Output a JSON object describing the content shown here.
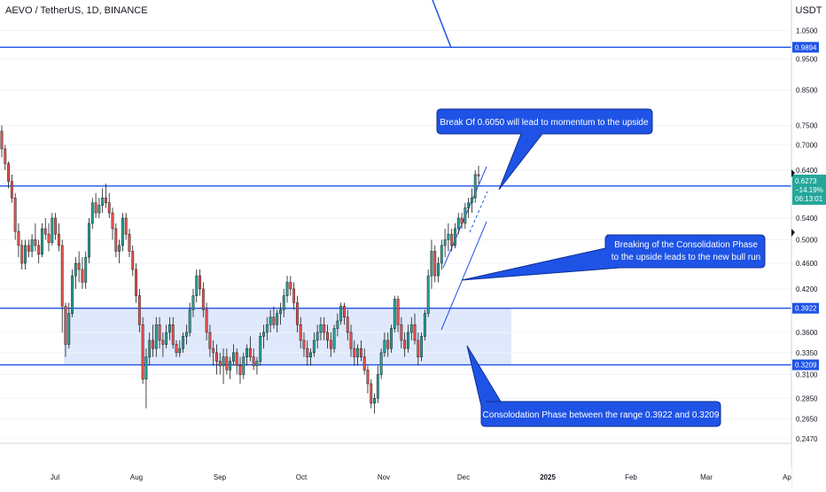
{
  "header": {
    "symbol_title": "AEVO / TetherUS, 1D, BINANCE",
    "currency": "USDT"
  },
  "colors": {
    "up": "#26a69a",
    "down": "#ef5350",
    "candle_border": "#1a1a1a",
    "level_line": "#1e53e5",
    "range_fill": "#dbe4fb",
    "callout_fill": "#1e53e5",
    "price_badge": "#26a69a"
  },
  "chart_data": {
    "type": "candlestick",
    "y_scale": "log",
    "ylim": [
      0.243,
      1.17
    ],
    "y_ticks": [
      "1.0500",
      "0.9500",
      "0.8500",
      "0.7500",
      "0.7000",
      "0.6400",
      "0.5400",
      "0.5000",
      "0.4600",
      "0.4200",
      "0.3600",
      "0.3350",
      "0.3100",
      "0.2850",
      "0.2650",
      "0.2470"
    ],
    "x_ticks": [
      "Jul",
      "Aug",
      "Sep",
      "Oct",
      "Nov",
      "Dec",
      "2025",
      "Feb",
      "Mar",
      "Ap"
    ],
    "levels": [
      {
        "price": 0.9894,
        "label": "0.9894"
      },
      {
        "price": 0.605,
        "label": "0.6050"
      },
      {
        "price": 0.3922,
        "label": "0.3922"
      },
      {
        "price": 0.3209,
        "label": "0.3209"
      }
    ],
    "last_price": {
      "price": "0.6273",
      "change": "−14.19%",
      "countdown": "06:13:01"
    },
    "consolidation_range": {
      "low": 0.3209,
      "high": 0.3922
    },
    "ohlc": [
      [
        0.735,
        0.75,
        0.67,
        0.69
      ],
      [
        0.69,
        0.7,
        0.64,
        0.655
      ],
      [
        0.655,
        0.66,
        0.6,
        0.615
      ],
      [
        0.615,
        0.63,
        0.57,
        0.58
      ],
      [
        0.58,
        0.59,
        0.5,
        0.515
      ],
      [
        0.515,
        0.53,
        0.47,
        0.49
      ],
      [
        0.49,
        0.5,
        0.45,
        0.46
      ],
      [
        0.46,
        0.5,
        0.45,
        0.49
      ],
      [
        0.49,
        0.5,
        0.47,
        0.48
      ],
      [
        0.48,
        0.51,
        0.47,
        0.5
      ],
      [
        0.5,
        0.53,
        0.48,
        0.49
      ],
      [
        0.49,
        0.5,
        0.46,
        0.475
      ],
      [
        0.475,
        0.53,
        0.47,
        0.52
      ],
      [
        0.52,
        0.54,
        0.5,
        0.51
      ],
      [
        0.51,
        0.53,
        0.48,
        0.495
      ],
      [
        0.495,
        0.55,
        0.49,
        0.54
      ],
      [
        0.54,
        0.55,
        0.5,
        0.51
      ],
      [
        0.51,
        0.53,
        0.48,
        0.49
      ],
      [
        0.49,
        0.5,
        0.36,
        0.395
      ],
      [
        0.395,
        0.4,
        0.33,
        0.345
      ],
      [
        0.345,
        0.4,
        0.34,
        0.385
      ],
      [
        0.385,
        0.45,
        0.38,
        0.44
      ],
      [
        0.44,
        0.47,
        0.42,
        0.46
      ],
      [
        0.46,
        0.48,
        0.43,
        0.45
      ],
      [
        0.45,
        0.47,
        0.42,
        0.43
      ],
      [
        0.43,
        0.48,
        0.42,
        0.47
      ],
      [
        0.47,
        0.54,
        0.46,
        0.53
      ],
      [
        0.53,
        0.58,
        0.52,
        0.57
      ],
      [
        0.57,
        0.59,
        0.54,
        0.55
      ],
      [
        0.55,
        0.58,
        0.54,
        0.565
      ],
      [
        0.565,
        0.6,
        0.55,
        0.58
      ],
      [
        0.58,
        0.61,
        0.56,
        0.57
      ],
      [
        0.57,
        0.59,
        0.54,
        0.55
      ],
      [
        0.55,
        0.56,
        0.5,
        0.52
      ],
      [
        0.52,
        0.53,
        0.47,
        0.48
      ],
      [
        0.48,
        0.5,
        0.46,
        0.49
      ],
      [
        0.49,
        0.55,
        0.48,
        0.54
      ],
      [
        0.54,
        0.55,
        0.5,
        0.51
      ],
      [
        0.51,
        0.52,
        0.47,
        0.48
      ],
      [
        0.48,
        0.49,
        0.44,
        0.45
      ],
      [
        0.45,
        0.46,
        0.4,
        0.41
      ],
      [
        0.41,
        0.42,
        0.36,
        0.37
      ],
      [
        0.37,
        0.38,
        0.3,
        0.305
      ],
      [
        0.305,
        0.34,
        0.275,
        0.33
      ],
      [
        0.33,
        0.36,
        0.32,
        0.35
      ],
      [
        0.35,
        0.37,
        0.33,
        0.34
      ],
      [
        0.34,
        0.38,
        0.33,
        0.37
      ],
      [
        0.37,
        0.38,
        0.34,
        0.35
      ],
      [
        0.35,
        0.36,
        0.33,
        0.345
      ],
      [
        0.345,
        0.37,
        0.34,
        0.36
      ],
      [
        0.36,
        0.38,
        0.35,
        0.37
      ],
      [
        0.37,
        0.38,
        0.34,
        0.345
      ],
      [
        0.345,
        0.35,
        0.33,
        0.335
      ],
      [
        0.335,
        0.35,
        0.33,
        0.34
      ],
      [
        0.34,
        0.36,
        0.335,
        0.355
      ],
      [
        0.355,
        0.37,
        0.345,
        0.36
      ],
      [
        0.36,
        0.4,
        0.355,
        0.39
      ],
      [
        0.39,
        0.42,
        0.38,
        0.41
      ],
      [
        0.41,
        0.45,
        0.4,
        0.44
      ],
      [
        0.44,
        0.45,
        0.41,
        0.42
      ],
      [
        0.42,
        0.43,
        0.38,
        0.39
      ],
      [
        0.39,
        0.4,
        0.35,
        0.36
      ],
      [
        0.36,
        0.37,
        0.33,
        0.34
      ],
      [
        0.34,
        0.35,
        0.32,
        0.335
      ],
      [
        0.335,
        0.345,
        0.31,
        0.325
      ],
      [
        0.325,
        0.335,
        0.31,
        0.32
      ],
      [
        0.32,
        0.34,
        0.3,
        0.33
      ],
      [
        0.33,
        0.34,
        0.31,
        0.315
      ],
      [
        0.315,
        0.33,
        0.305,
        0.325
      ],
      [
        0.325,
        0.345,
        0.32,
        0.335
      ],
      [
        0.335,
        0.34,
        0.31,
        0.32
      ],
      [
        0.32,
        0.33,
        0.3,
        0.31
      ],
      [
        0.31,
        0.335,
        0.305,
        0.33
      ],
      [
        0.33,
        0.345,
        0.32,
        0.34
      ],
      [
        0.34,
        0.355,
        0.325,
        0.33
      ],
      [
        0.33,
        0.34,
        0.315,
        0.32
      ],
      [
        0.32,
        0.33,
        0.31,
        0.325
      ],
      [
        0.325,
        0.36,
        0.32,
        0.355
      ],
      [
        0.355,
        0.37,
        0.34,
        0.36
      ],
      [
        0.36,
        0.38,
        0.35,
        0.37
      ],
      [
        0.37,
        0.39,
        0.36,
        0.38
      ],
      [
        0.38,
        0.395,
        0.365,
        0.37
      ],
      [
        0.37,
        0.39,
        0.36,
        0.385
      ],
      [
        0.385,
        0.4,
        0.37,
        0.39
      ],
      [
        0.39,
        0.42,
        0.38,
        0.41
      ],
      [
        0.41,
        0.44,
        0.4,
        0.43
      ],
      [
        0.43,
        0.44,
        0.41,
        0.42
      ],
      [
        0.42,
        0.43,
        0.39,
        0.4
      ],
      [
        0.4,
        0.41,
        0.36,
        0.37
      ],
      [
        0.37,
        0.38,
        0.34,
        0.35
      ],
      [
        0.35,
        0.36,
        0.33,
        0.34
      ],
      [
        0.34,
        0.35,
        0.32,
        0.33
      ],
      [
        0.33,
        0.34,
        0.32,
        0.335
      ],
      [
        0.335,
        0.36,
        0.33,
        0.35
      ],
      [
        0.35,
        0.37,
        0.34,
        0.36
      ],
      [
        0.36,
        0.38,
        0.35,
        0.37
      ],
      [
        0.37,
        0.38,
        0.35,
        0.36
      ],
      [
        0.36,
        0.37,
        0.34,
        0.35
      ],
      [
        0.35,
        0.36,
        0.33,
        0.34
      ],
      [
        0.34,
        0.37,
        0.335,
        0.365
      ],
      [
        0.365,
        0.385,
        0.355,
        0.375
      ],
      [
        0.375,
        0.4,
        0.37,
        0.395
      ],
      [
        0.395,
        0.4,
        0.37,
        0.38
      ],
      [
        0.38,
        0.39,
        0.35,
        0.36
      ],
      [
        0.36,
        0.37,
        0.33,
        0.34
      ],
      [
        0.34,
        0.35,
        0.32,
        0.33
      ],
      [
        0.33,
        0.345,
        0.32,
        0.34
      ],
      [
        0.34,
        0.35,
        0.325,
        0.33
      ],
      [
        0.33,
        0.34,
        0.31,
        0.315
      ],
      [
        0.315,
        0.32,
        0.29,
        0.3
      ],
      [
        0.3,
        0.305,
        0.275,
        0.28
      ],
      [
        0.28,
        0.29,
        0.27,
        0.285
      ],
      [
        0.285,
        0.32,
        0.28,
        0.31
      ],
      [
        0.31,
        0.34,
        0.305,
        0.335
      ],
      [
        0.335,
        0.36,
        0.33,
        0.35
      ],
      [
        0.35,
        0.36,
        0.33,
        0.34
      ],
      [
        0.34,
        0.37,
        0.335,
        0.365
      ],
      [
        0.365,
        0.41,
        0.36,
        0.405
      ],
      [
        0.405,
        0.41,
        0.36,
        0.37
      ],
      [
        0.37,
        0.38,
        0.34,
        0.35
      ],
      [
        0.35,
        0.36,
        0.33,
        0.34
      ],
      [
        0.34,
        0.37,
        0.335,
        0.36
      ],
      [
        0.36,
        0.38,
        0.35,
        0.37
      ],
      [
        0.37,
        0.385,
        0.345,
        0.35
      ],
      [
        0.35,
        0.36,
        0.32,
        0.33
      ],
      [
        0.33,
        0.36,
        0.325,
        0.355
      ],
      [
        0.355,
        0.39,
        0.35,
        0.385
      ],
      [
        0.385,
        0.45,
        0.38,
        0.44
      ],
      [
        0.44,
        0.5,
        0.42,
        0.48
      ],
      [
        0.48,
        0.49,
        0.43,
        0.44
      ],
      [
        0.44,
        0.47,
        0.43,
        0.46
      ],
      [
        0.46,
        0.5,
        0.45,
        0.49
      ],
      [
        0.49,
        0.52,
        0.47,
        0.5
      ],
      [
        0.5,
        0.53,
        0.48,
        0.51
      ],
      [
        0.51,
        0.52,
        0.48,
        0.49
      ],
      [
        0.49,
        0.53,
        0.485,
        0.52
      ],
      [
        0.52,
        0.55,
        0.51,
        0.54
      ],
      [
        0.54,
        0.55,
        0.52,
        0.53
      ],
      [
        0.53,
        0.57,
        0.52,
        0.56
      ],
      [
        0.56,
        0.58,
        0.54,
        0.57
      ],
      [
        0.57,
        0.6,
        0.55,
        0.58
      ],
      [
        0.58,
        0.64,
        0.57,
        0.63
      ],
      [
        0.63,
        0.65,
        0.61,
        0.6273
      ]
    ]
  },
  "annotations": [
    {
      "lines": [
        "Break Of 0.6050 will lead to momentum to the upside"
      ]
    },
    {
      "lines": [
        "Breaking of the Consolidation Phase",
        "to the upside leads to the new bull run"
      ]
    },
    {
      "lines": [
        "Consolodation Phase between the range 0.3922 and 0.3209"
      ]
    }
  ]
}
